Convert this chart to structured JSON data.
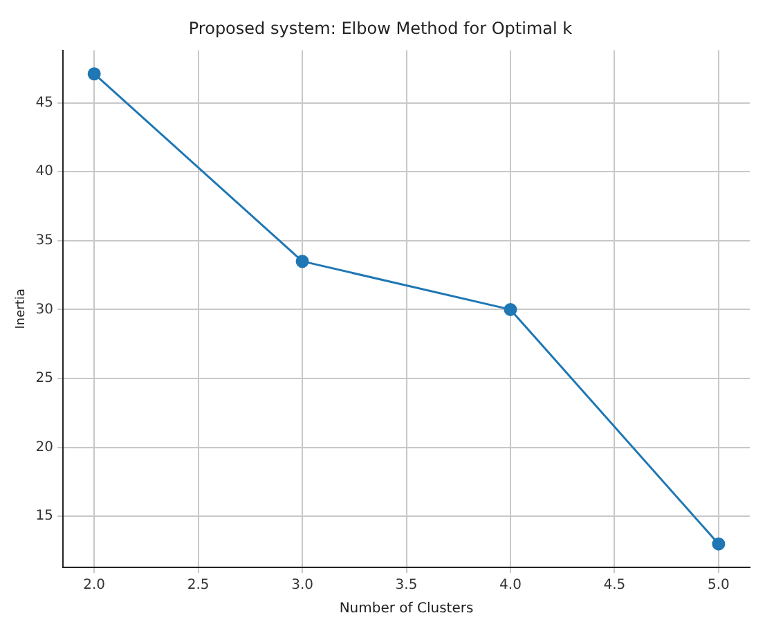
{
  "chart_data": {
    "type": "line",
    "title": "Proposed system: Elbow Method for Optimal k",
    "xlabel": "Number of Clusters",
    "ylabel": "Inertia",
    "x": [
      2,
      3,
      4,
      5
    ],
    "series": [
      {
        "color": "#1f77b4",
        "values": [
          47.1,
          33.5,
          30.0,
          13.0
        ]
      }
    ],
    "xlim": [
      1.85,
      5.15
    ],
    "xticks": [
      {
        "value": 2,
        "label": "2.0"
      },
      {
        "value": 2.5,
        "label": "2.5"
      },
      {
        "value": 3,
        "label": "3.0"
      },
      {
        "value": 3.5,
        "label": "3.5"
      },
      {
        "value": 4,
        "label": "4.0"
      },
      {
        "value": 4.5,
        "label": "4.5"
      },
      {
        "value": 5,
        "label": "5.0"
      }
    ],
    "ylim": [
      11.3,
      48.8
    ],
    "yticks": [
      15,
      20,
      25,
      30,
      35,
      40,
      45
    ],
    "grid": true,
    "marker": "circle",
    "line_style": "solid"
  }
}
